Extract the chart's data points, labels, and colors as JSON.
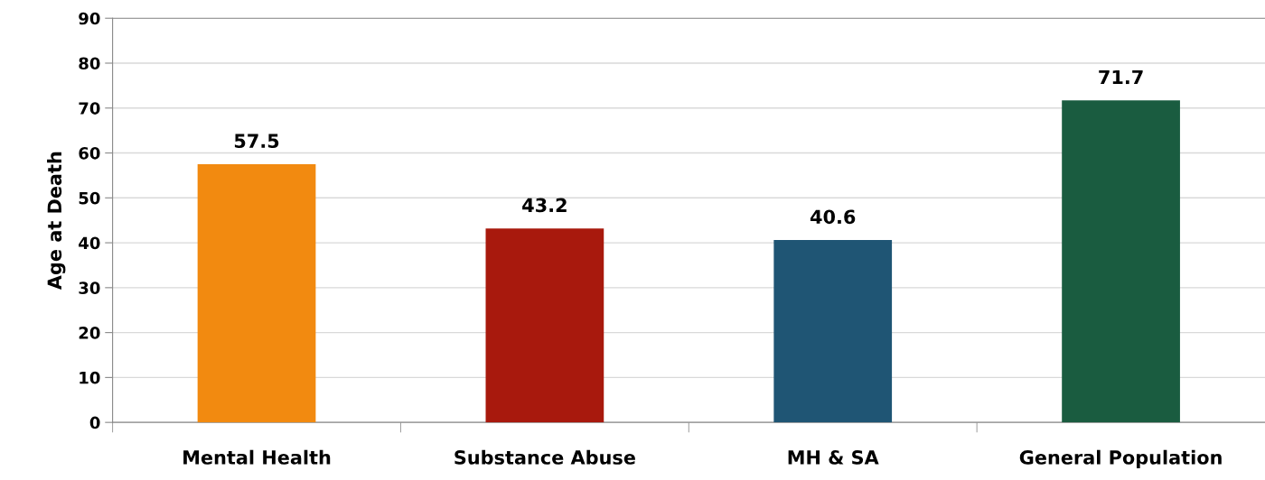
{
  "chart_data": {
    "type": "bar",
    "ylabel": "Age at Death",
    "categories": [
      "Mental Health",
      "Substance Abuse",
      "MH & SA",
      "General Population"
    ],
    "values": [
      57.5,
      43.2,
      40.6,
      71.7
    ],
    "colors": [
      "#f28a10",
      "#a8190d",
      "#1f5574",
      "#1a5c40"
    ],
    "ylim": [
      0,
      90
    ],
    "yticks": [
      0,
      10,
      20,
      30,
      40,
      50,
      60,
      70,
      80,
      90
    ],
    "grid": "y",
    "data_labels": true,
    "legend": false
  }
}
